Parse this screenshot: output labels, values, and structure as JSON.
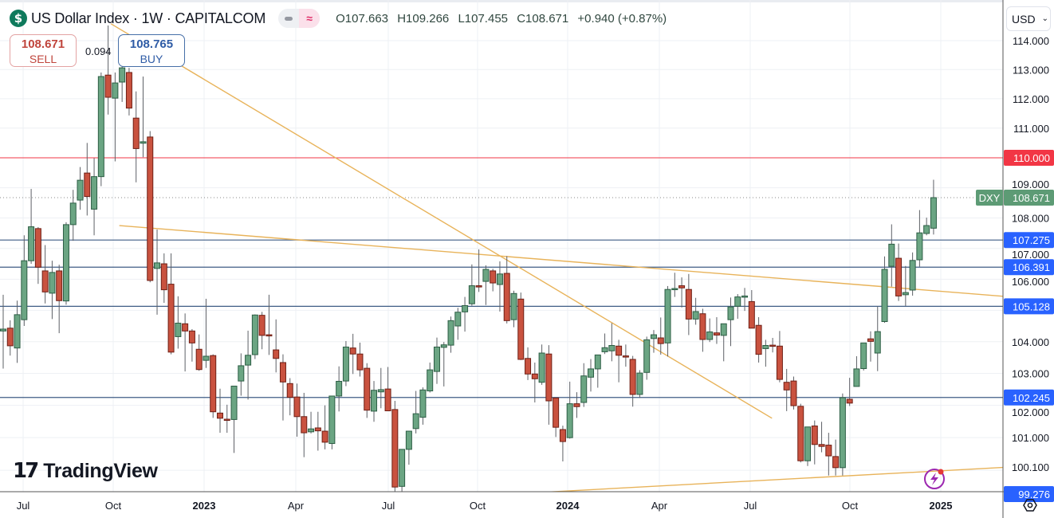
{
  "header": {
    "symbol_icon": "dollar-icon",
    "title": "US Dollar Index · 1W · CAPITALCOM",
    "open": "O107.663",
    "high": "H109.266",
    "low": "L107.455",
    "close": "C108.671",
    "change": "+0.940 (+0.87%)"
  },
  "trade": {
    "sell_price": "108.671",
    "sell_label": "SELL",
    "spread": "0.094",
    "buy_price": "108.765",
    "buy_label": "BUY"
  },
  "currency": "USD",
  "branding": {
    "mark": "17",
    "name": "TradingView"
  },
  "colors": {
    "up": "#6ba583",
    "down": "#c9523f",
    "resistance": "#f23645",
    "level_label": "#2962ff",
    "level_line": "#3f5d85",
    "trendline": "#e8b35a",
    "last_price": "#5d9b75"
  },
  "chart_data": {
    "type": "candlestick",
    "symbol": "DXY",
    "interval": "1W",
    "scale": "log",
    "ylim": [
      99.0,
      114.6
    ],
    "grid": true,
    "y_ticks": [
      "114.000",
      "113.000",
      "112.000",
      "111.000",
      "109.000",
      "108.000",
      "107.000",
      "106.000",
      "104.000",
      "103.000",
      "102.000",
      "101.000",
      "100.100"
    ],
    "y_tick_values": [
      114,
      113,
      112,
      111,
      109,
      108,
      107,
      106,
      104,
      103,
      102,
      101,
      100.1
    ],
    "x_ticks": [
      "Jul",
      "Oct",
      "2023",
      "Apr",
      "Jul",
      "Oct",
      "2024",
      "Apr",
      "Jul",
      "Oct",
      "2025"
    ],
    "last_price": {
      "tag": "DXY",
      "value": 108.671,
      "label": "108.671"
    },
    "resistance": {
      "value": 110.0,
      "label": "110.000"
    },
    "levels": [
      {
        "value": 107.275,
        "label": "107.275"
      },
      {
        "value": 106.391,
        "label": "106.391"
      },
      {
        "value": 105.128,
        "label": "105.128"
      },
      {
        "value": 102.245,
        "label": "102.245"
      }
    ],
    "low_marker": {
      "value": 99.276,
      "label": "99.276"
    },
    "trendlines": [
      {
        "from_week": 16.6,
        "from_price": 107.75,
        "to_week": 150.2,
        "to_price": 105.32
      },
      {
        "from_week": 15.4,
        "from_price": 114.59,
        "to_week": 109.9,
        "to_price": 101.6
      },
      {
        "from_week": 77.0,
        "from_price": 99.33,
        "to_week": 150.2,
        "to_price": 100.17
      }
    ],
    "ohlc_fields": [
      "open",
      "high",
      "low",
      "close"
    ],
    "candles": [
      [
        104.34,
        105.5,
        103.15,
        104.4
      ],
      [
        104.43,
        104.68,
        103.56,
        103.87
      ],
      [
        103.8,
        105.31,
        103.33,
        104.86
      ],
      [
        104.7,
        107.43,
        104.5,
        106.6
      ],
      [
        106.6,
        108.96,
        106.5,
        107.71
      ],
      [
        107.65,
        107.7,
        105.85,
        106.39
      ],
      [
        106.27,
        107.11,
        105.22,
        105.59
      ],
      [
        105.55,
        106.6,
        104.72,
        106.22
      ],
      [
        106.27,
        106.47,
        104.27,
        105.31
      ],
      [
        105.3,
        107.86,
        105.18,
        107.78
      ],
      [
        107.78,
        108.93,
        107.25,
        108.49
      ],
      [
        108.59,
        109.69,
        108.27,
        109.25
      ],
      [
        109.49,
        110.5,
        108.08,
        108.71
      ],
      [
        108.29,
        109.99,
        107.43,
        109.37
      ],
      [
        109.37,
        112.9,
        109.05,
        112.76
      ],
      [
        112.81,
        114.53,
        111.46,
        112.05
      ],
      [
        112.02,
        112.9,
        109.88,
        112.54
      ],
      [
        112.57,
        113.25,
        111.89,
        113.06
      ],
      [
        112.9,
        113.06,
        111.43,
        111.68
      ],
      [
        111.34,
        112.25,
        109.18,
        110.31
      ],
      [
        110.49,
        112.76,
        110.02,
        110.54
      ],
      [
        110.7,
        110.9,
        105.9,
        105.96
      ],
      [
        106.35,
        107.62,
        104.86,
        106.53
      ],
      [
        106.5,
        106.84,
        105.24,
        105.66
      ],
      [
        105.84,
        106.84,
        103.6,
        103.67
      ],
      [
        104.16,
        105.45,
        103.78,
        104.59
      ],
      [
        104.57,
        104.9,
        103.06,
        104.34
      ],
      [
        104.34,
        104.4,
        103.37,
        103.96
      ],
      [
        103.76,
        104.23,
        103.08,
        103.12
      ],
      [
        103.41,
        105.37,
        103.17,
        103.54
      ],
      [
        103.56,
        103.6,
        101.61,
        101.8
      ],
      [
        101.76,
        102.52,
        101.15,
        101.6
      ],
      [
        101.57,
        102.02,
        101.15,
        101.55
      ],
      [
        101.56,
        102.6,
        100.53,
        102.6
      ],
      [
        102.76,
        103.63,
        102.3,
        103.24
      ],
      [
        103.26,
        104.35,
        102.18,
        103.57
      ],
      [
        103.59,
        104.87,
        103.45,
        104.85
      ],
      [
        104.84,
        104.95,
        103.76,
        104.2
      ],
      [
        104.22,
        105.5,
        103.58,
        104.2
      ],
      [
        103.74,
        104.71,
        103.03,
        103.47
      ],
      [
        103.34,
        103.6,
        101.53,
        102.73
      ],
      [
        102.68,
        102.85,
        101.69,
        102.25
      ],
      [
        102.26,
        102.68,
        101.03,
        101.65
      ],
      [
        101.65,
        102.39,
        100.4,
        101.15
      ],
      [
        101.18,
        101.8,
        101.13,
        101.27
      ],
      [
        101.3,
        101.8,
        100.6,
        101.21
      ],
      [
        101.2,
        102.0,
        100.64,
        100.86
      ],
      [
        100.82,
        102.29,
        100.64,
        102.29
      ],
      [
        102.29,
        103.22,
        101.81,
        102.75
      ],
      [
        102.76,
        104.02,
        102.6,
        103.83
      ],
      [
        103.8,
        104.25,
        102.98,
        103.61
      ],
      [
        103.61,
        103.97,
        102.9,
        103.11
      ],
      [
        103.16,
        103.32,
        101.61,
        101.85
      ],
      [
        101.82,
        102.76,
        101.49,
        102.47
      ],
      [
        102.42,
        103.17,
        101.91,
        102.49
      ],
      [
        102.51,
        103.2,
        101.83,
        101.83
      ],
      [
        101.87,
        102.14,
        99.34,
        99.49
      ],
      [
        99.51,
        100.64,
        99.34,
        100.64
      ],
      [
        100.64,
        101.2,
        100.17,
        101.2
      ],
      [
        101.28,
        102.45,
        101.13,
        101.74
      ],
      [
        101.63,
        102.56,
        101.4,
        102.48
      ],
      [
        102.45,
        103.34,
        102.4,
        103.11
      ],
      [
        103.06,
        104.13,
        102.67,
        103.83
      ],
      [
        103.82,
        103.99,
        102.59,
        103.9
      ],
      [
        103.89,
        104.8,
        103.65,
        104.67
      ],
      [
        104.5,
        105.08,
        104.06,
        104.94
      ],
      [
        104.95,
        105.43,
        104.32,
        105.15
      ],
      [
        105.21,
        106.48,
        105.15,
        105.79
      ],
      [
        105.79,
        106.97,
        105.59,
        105.75
      ],
      [
        105.93,
        106.45,
        105.17,
        106.32
      ],
      [
        106.27,
        106.34,
        105.61,
        105.88
      ],
      [
        105.83,
        106.58,
        104.96,
        106.17
      ],
      [
        106.19,
        106.75,
        104.58,
        104.67
      ],
      [
        104.7,
        105.63,
        104.46,
        105.54
      ],
      [
        105.36,
        105.57,
        103.42,
        103.44
      ],
      [
        103.47,
        103.82,
        102.79,
        102.98
      ],
      [
        102.98,
        103.34,
        102.09,
        102.83
      ],
      [
        102.72,
        103.91,
        102.64,
        103.64
      ],
      [
        103.61,
        103.89,
        101.4,
        102.14
      ],
      [
        102.23,
        102.23,
        101.02,
        101.32
      ],
      [
        101.25,
        101.37,
        100.27,
        100.88
      ],
      [
        101.0,
        102.74,
        100.97,
        102.05
      ],
      [
        102.05,
        102.41,
        101.61,
        101.96
      ],
      [
        102.09,
        103.32,
        101.95,
        102.92
      ],
      [
        102.88,
        103.45,
        102.43,
        103.14
      ],
      [
        103.14,
        103.57,
        102.55,
        103.58
      ],
      [
        103.68,
        104.26,
        103.61,
        103.81
      ],
      [
        103.71,
        104.59,
        103.38,
        103.88
      ],
      [
        103.86,
        104.06,
        102.72,
        103.57
      ],
      [
        103.55,
        103.91,
        103.21,
        103.52
      ],
      [
        103.44,
        103.55,
        101.96,
        102.34
      ],
      [
        102.34,
        103.1,
        102.23,
        103.01
      ],
      [
        103.03,
        104.16,
        102.8,
        104.06
      ],
      [
        104.1,
        104.37,
        103.65,
        104.22
      ],
      [
        104.12,
        104.77,
        103.59,
        103.94
      ],
      [
        103.96,
        105.78,
        103.53,
        105.67
      ],
      [
        105.69,
        106.21,
        105.43,
        105.7
      ],
      [
        105.79,
        106.06,
        105.09,
        105.72
      ],
      [
        105.67,
        106.17,
        104.21,
        104.72
      ],
      [
        104.72,
        105.4,
        104.54,
        104.96
      ],
      [
        104.89,
        105.05,
        103.68,
        104.07
      ],
      [
        104.07,
        104.74,
        103.99,
        104.31
      ],
      [
        104.28,
        104.78,
        103.93,
        104.21
      ],
      [
        104.2,
        104.57,
        103.38,
        104.57
      ],
      [
        104.7,
        105.41,
        103.86,
        105.11
      ],
      [
        105.13,
        105.52,
        104.73,
        105.43
      ],
      [
        105.42,
        105.72,
        104.98,
        105.46
      ],
      [
        105.28,
        105.65,
        104.43,
        104.43
      ],
      [
        104.52,
        104.78,
        103.34,
        103.6
      ],
      [
        103.78,
        104.06,
        103.21,
        103.88
      ],
      [
        103.89,
        104.12,
        103.66,
        103.87
      ],
      [
        103.86,
        104.34,
        102.72,
        102.81
      ],
      [
        102.72,
        103.14,
        101.82,
        102.48
      ],
      [
        102.76,
        102.9,
        101.87,
        101.99
      ],
      [
        101.97,
        102.05,
        100.24,
        100.29
      ],
      [
        100.29,
        101.33,
        100.13,
        101.33
      ],
      [
        101.36,
        101.53,
        100.18,
        100.79
      ],
      [
        100.79,
        101.49,
        100.55,
        100.73
      ],
      [
        100.77,
        101.15,
        99.84,
        100.44
      ],
      [
        100.42,
        100.94,
        99.84,
        100.08
      ],
      [
        100.08,
        102.37,
        99.84,
        102.24
      ],
      [
        102.19,
        102.86,
        101.98,
        102.07
      ],
      [
        102.59,
        103.54,
        102.59,
        103.14
      ],
      [
        103.15,
        103.96,
        103.09,
        103.96
      ],
      [
        104.09,
        104.33,
        103.37,
        104.01
      ],
      [
        103.64,
        105.13,
        103.07,
        104.32
      ],
      [
        104.64,
        106.74,
        104.6,
        106.32
      ],
      [
        106.42,
        107.79,
        105.76,
        107.14
      ],
      [
        106.68,
        107.16,
        105.3,
        105.46
      ],
      [
        105.5,
        106.43,
        105.14,
        105.57
      ],
      [
        105.65,
        106.87,
        105.47,
        106.61
      ],
      [
        106.63,
        108.26,
        106.41,
        107.51
      ],
      [
        107.49,
        108.01,
        107.43,
        107.75
      ],
      [
        107.663,
        109.266,
        107.455,
        108.671
      ]
    ]
  }
}
